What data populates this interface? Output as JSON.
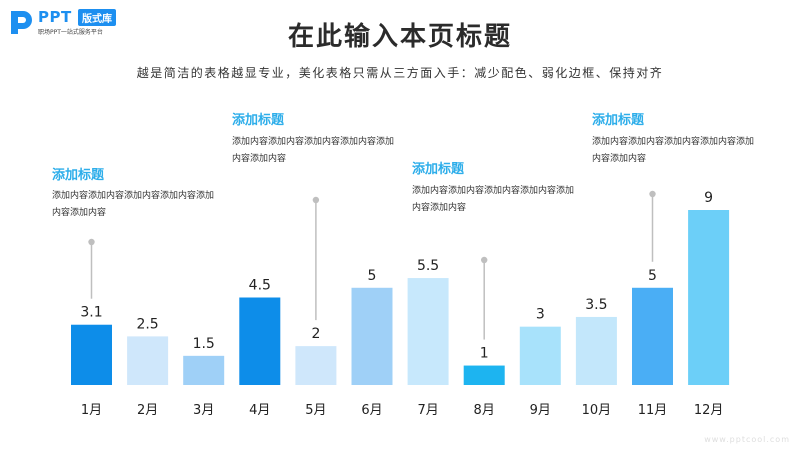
{
  "logo": {
    "brand": "PPT",
    "badge": "版式库",
    "tagline": "职场PPT一站式服务平台"
  },
  "page": {
    "title": "在此输入本页标题",
    "subtitle": "越是简洁的表格越显专业，美化表格只需从三方面入手：减少配色、弱化边框、保持对齐",
    "footer": "www.pptcool.com"
  },
  "annotations": [
    {
      "title": "添加标题",
      "body": "添加内容添加内容添加内容添加内容添加内容添加内容",
      "category": "1月"
    },
    {
      "title": "添加标题",
      "body": "添加内容添加内容添加内容添加内容添加内容添加内容",
      "category": "5月"
    },
    {
      "title": "添加标题",
      "body": "添加内容添加内容添加内容添加内容添加内容添加内容",
      "category": "8月"
    },
    {
      "title": "添加标题",
      "body": "添加内容添加内容添加内容添加内容添加内容添加内容",
      "category": "11月"
    }
  ],
  "chart_data": {
    "type": "bar",
    "categories": [
      "1月",
      "2月",
      "3月",
      "4月",
      "5月",
      "6月",
      "7月",
      "8月",
      "9月",
      "10月",
      "11月",
      "12月"
    ],
    "values": [
      3.1,
      2.5,
      1.5,
      4.5,
      2,
      5,
      5.5,
      1,
      3,
      3.5,
      5,
      9
    ],
    "value_labels": [
      "3.1",
      "2.5",
      "1.5",
      "4.5",
      "2",
      "5",
      "5.5",
      "1",
      "3",
      "3.5",
      "5",
      "9"
    ],
    "colors": [
      "#0d8de9",
      "#cfe7fb",
      "#9fd0f7",
      "#0d8de9",
      "#cfe7fb",
      "#9fd0f7",
      "#c7e8fc",
      "#1db4f0",
      "#a8e2fb",
      "#c3e7fb",
      "#4aaef5",
      "#6ccff8"
    ],
    "ylim": [
      0,
      9
    ],
    "grid": false,
    "legend": "none"
  }
}
